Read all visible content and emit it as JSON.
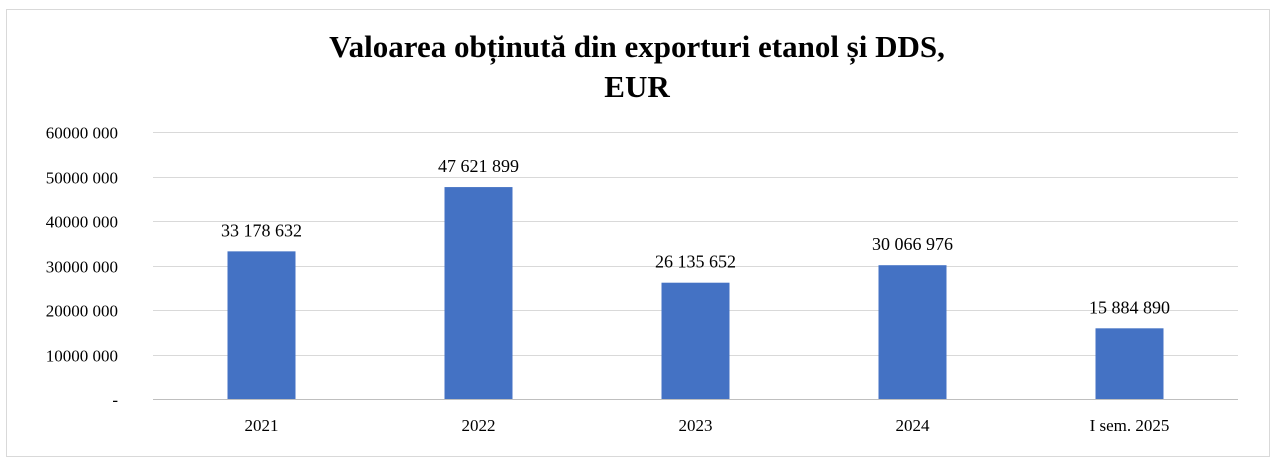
{
  "chart_data": {
    "type": "bar",
    "title_lines": [
      "Valoarea obținută din exporturi etanol și DDS,",
      "EUR"
    ],
    "categories": [
      "2021",
      "2022",
      "2023",
      "2024",
      "I sem. 2025"
    ],
    "values": [
      33178632,
      47621899,
      26135652,
      30066976,
      15884890
    ],
    "data_labels": [
      "33 178 632",
      "47 621 899",
      "26 135 652",
      "30 066 976",
      "15 884 890"
    ],
    "ylim": [
      0,
      60000000
    ],
    "y_ticks": [
      0,
      10000000,
      20000000,
      30000000,
      40000000,
      50000000,
      60000000
    ],
    "y_tick_labels": [
      "-",
      "10000 000",
      "20000 000",
      "30000 000",
      "40000 000",
      "50000 000",
      "60000 000"
    ],
    "grid": true,
    "legend": "none",
    "bar_color": "#4472c4",
    "xlabel": "",
    "ylabel": ""
  }
}
